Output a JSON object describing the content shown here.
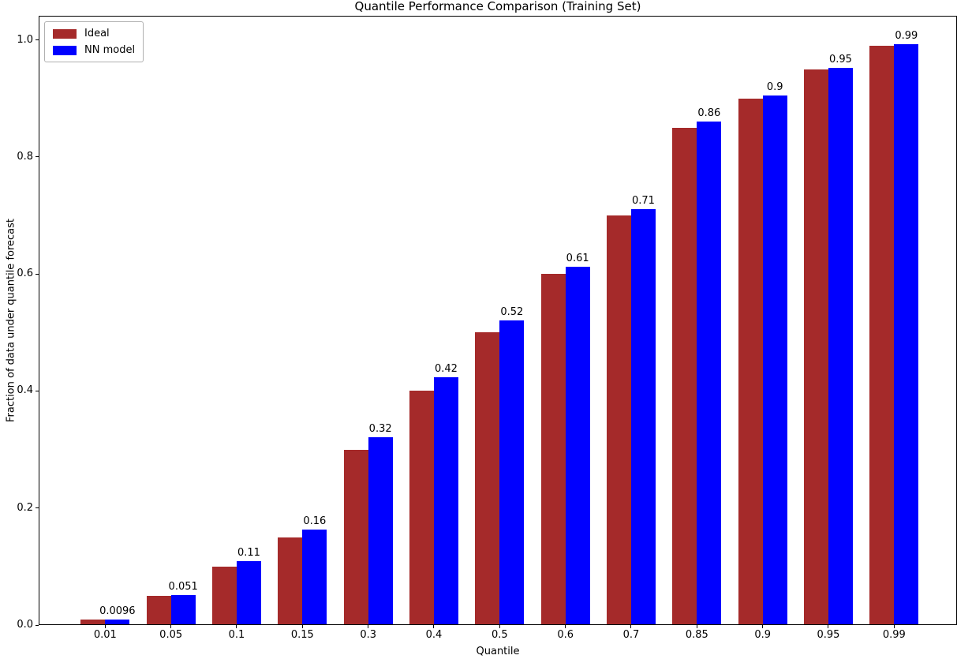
{
  "chart_data": {
    "type": "bar",
    "title": "Quantile Performance Comparison (Training Set)",
    "xlabel": "Quantile",
    "ylabel": "Fraction of data under quantile forecast",
    "categories": [
      "0.01",
      "0.05",
      "0.1",
      "0.15",
      "0.3",
      "0.4",
      "0.5",
      "0.6",
      "0.7",
      "0.85",
      "0.9",
      "0.95",
      "0.99"
    ],
    "series": [
      {
        "name": "Ideal",
        "color": "#a52a2a",
        "values": [
          0.01,
          0.05,
          0.1,
          0.15,
          0.3,
          0.4,
          0.5,
          0.6,
          0.7,
          0.85,
          0.9,
          0.95,
          0.99
        ]
      },
      {
        "name": "NN model",
        "color": "#0000ff",
        "values": [
          0.0096,
          0.051,
          0.109,
          0.163,
          0.321,
          0.423,
          0.52,
          0.612,
          0.711,
          0.86,
          0.905,
          0.952,
          0.992
        ],
        "bar_labels": [
          "0.0096",
          "0.051",
          "0.11",
          "0.16",
          "0.32",
          "0.42",
          "0.52",
          "0.61",
          "0.71",
          "0.86",
          "0.9",
          "0.95",
          "0.99"
        ]
      }
    ],
    "y_tick_labels": [
      "0.0",
      "0.2",
      "0.4",
      "0.6",
      "0.8",
      "1.0"
    ],
    "y_tick_values": [
      0.0,
      0.2,
      0.4,
      0.6,
      0.8,
      1.0
    ],
    "ylim": [
      0.0,
      1.04
    ],
    "legend_position": "upper left",
    "grid": false,
    "background_color": "#ffffff",
    "axis_color": "#000000",
    "text_color": "#000000"
  }
}
